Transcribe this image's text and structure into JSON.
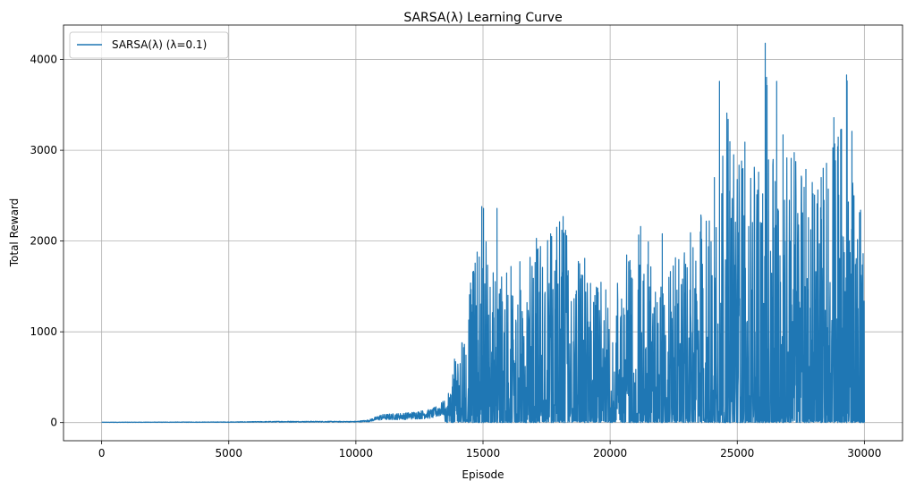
{
  "chart_data": {
    "type": "line",
    "title": "SARSA(λ) Learning Curve",
    "xlabel": "Episode",
    "ylabel": "Total Reward",
    "xlim": [
      -1500,
      31500
    ],
    "ylim": [
      -200,
      4380
    ],
    "xticks": [
      0,
      5000,
      10000,
      15000,
      20000,
      25000,
      30000
    ],
    "yticks": [
      0,
      1000,
      2000,
      3000,
      4000
    ],
    "grid": true,
    "legend_position": "top-left",
    "series": [
      {
        "name": "SARSA(λ) (λ=0.1)",
        "color": "#1f77b4",
        "episodes": 30000,
        "envelope": {
          "x": [
            0,
            5000,
            7000,
            10000,
            10500,
            11000,
            12000,
            13000,
            13500,
            13800,
            14000,
            14200,
            14500,
            15000,
            15500,
            16000,
            17000,
            18000,
            19000,
            20000,
            21000,
            22000,
            23000,
            24000,
            24300,
            25000,
            26000,
            26100,
            26500,
            27000,
            28000,
            29000,
            29300,
            30000
          ],
          "y": [
            5,
            8,
            15,
            15,
            30,
            90,
            110,
            150,
            250,
            560,
            950,
            950,
            1550,
            2380,
            1700,
            1650,
            2050,
            2280,
            1700,
            1500,
            2180,
            1600,
            2000,
            2700,
            3760,
            3090,
            2700,
            4180,
            3760,
            3170,
            2800,
            3360,
            3830,
            1810
          ]
        },
        "peaks": [
          [
            14600,
            1660
          ],
          [
            14950,
            2380
          ],
          [
            15020,
            2360
          ],
          [
            15550,
            2360
          ],
          [
            16100,
            1720
          ],
          [
            17100,
            2030
          ],
          [
            17700,
            2050
          ],
          [
            18150,
            2270
          ],
          [
            19000,
            1810
          ],
          [
            20800,
            1680
          ],
          [
            21200,
            2160
          ],
          [
            21500,
            1990
          ],
          [
            22050,
            2080
          ],
          [
            23600,
            2020
          ],
          [
            24100,
            2700
          ],
          [
            24300,
            3760
          ],
          [
            24700,
            2550
          ],
          [
            25200,
            2790
          ],
          [
            25300,
            3090
          ],
          [
            25800,
            2560
          ],
          [
            26000,
            2520
          ],
          [
            26100,
            4180
          ],
          [
            26550,
            3760
          ],
          [
            26800,
            3170
          ],
          [
            27700,
            2790
          ],
          [
            28300,
            2700
          ],
          [
            28800,
            3360
          ],
          [
            28950,
            3040
          ],
          [
            29100,
            3040
          ],
          [
            29300,
            3830
          ],
          [
            29500,
            2130
          ],
          [
            29850,
            2340
          ],
          [
            29950,
            1810
          ]
        ]
      }
    ]
  }
}
